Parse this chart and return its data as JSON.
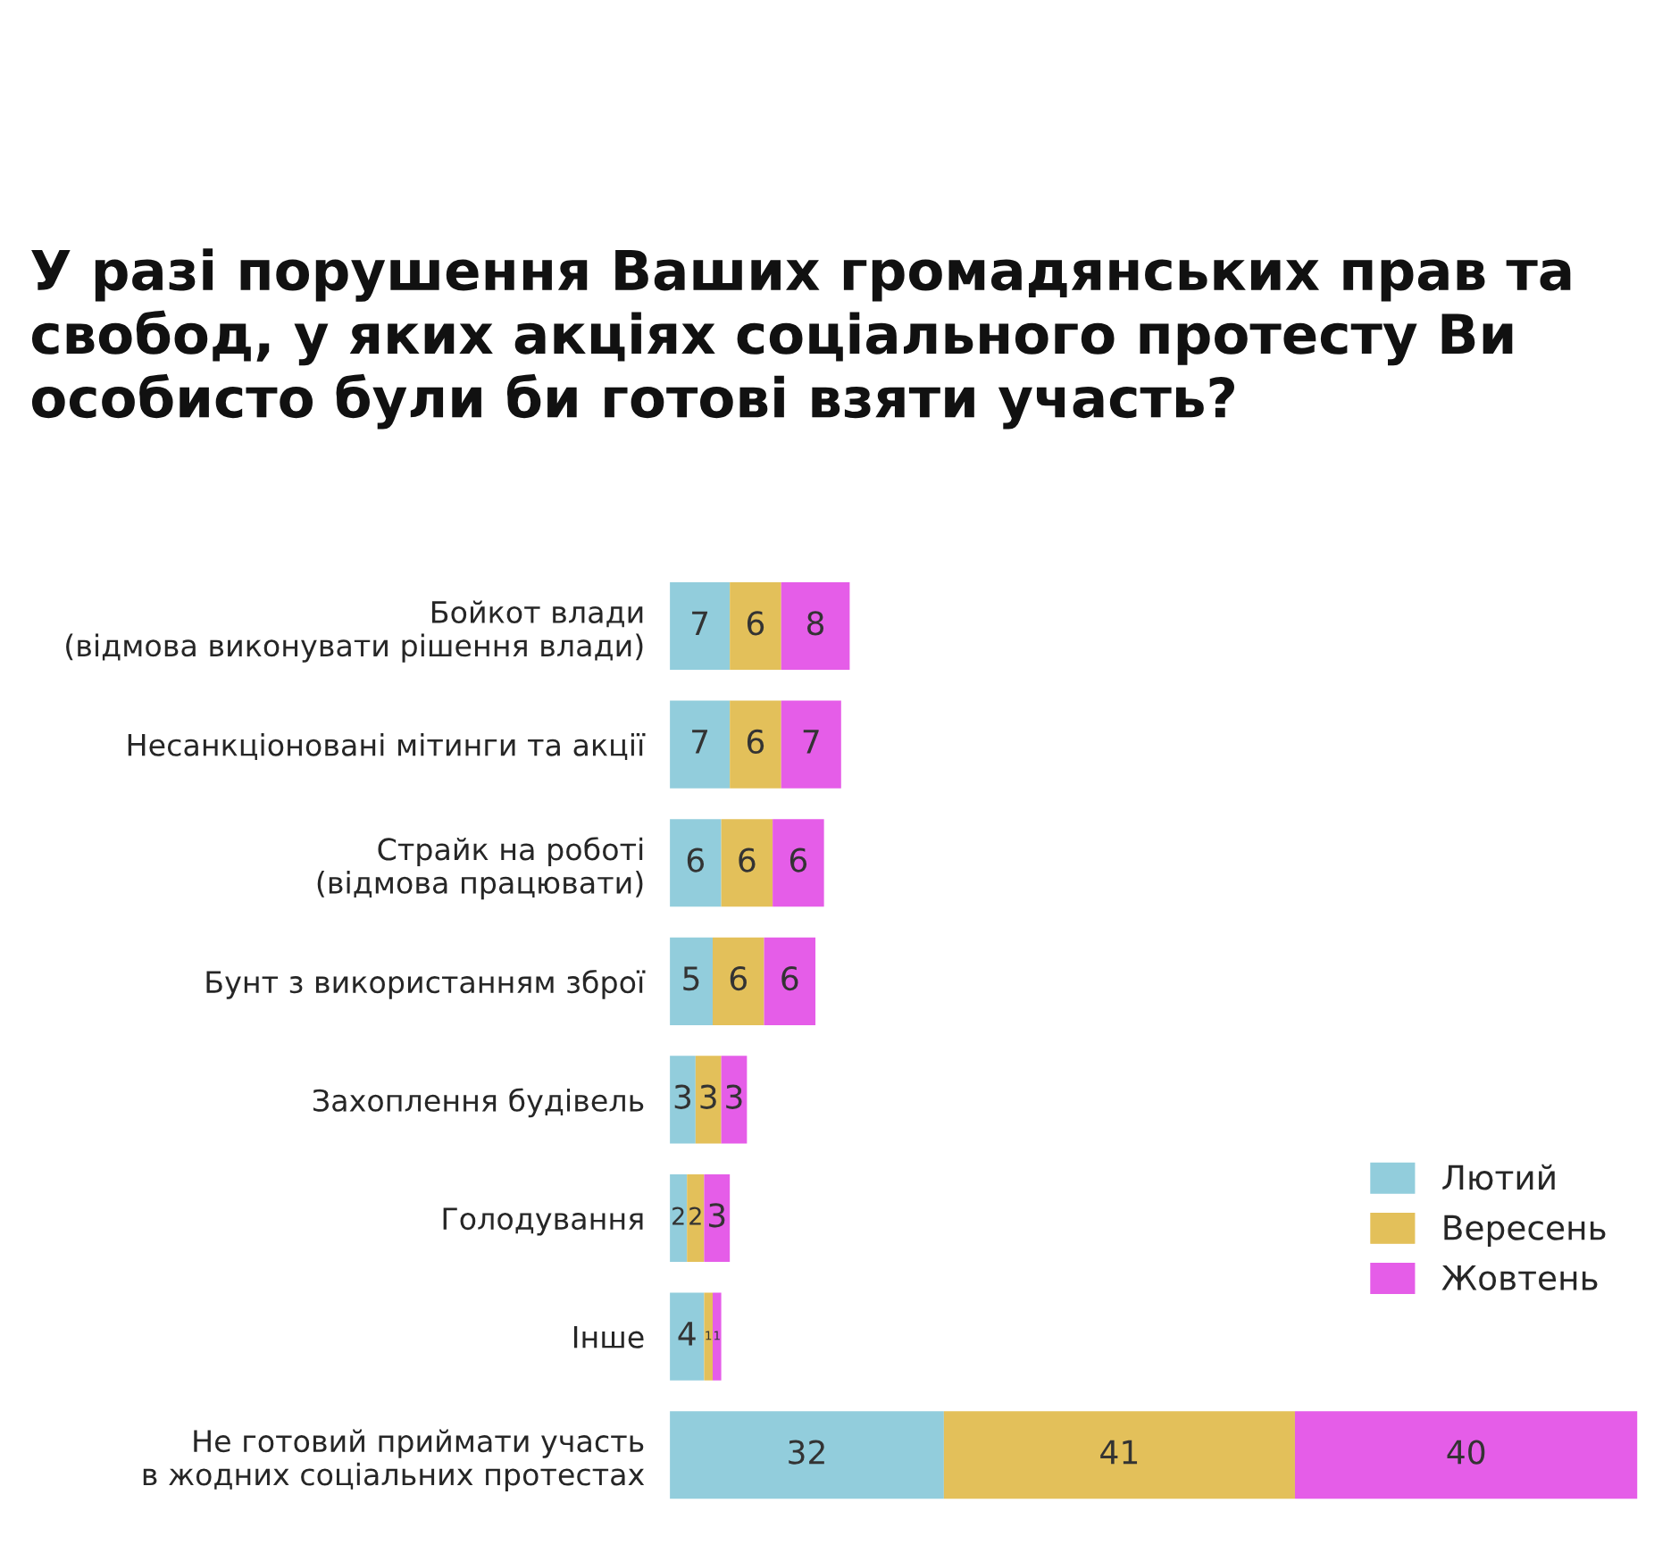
{
  "chart_data": {
    "type": "bar",
    "orientation": "horizontal",
    "stacked": true,
    "data_labels": true,
    "legend": "right",
    "title": "У разі порушення Ваших громадянських прав та свобод, у яких акціях соціального протесту Ви особисто були би готові взяти участь?",
    "categories": [
      "Бойкот влади\n(відмова виконувати рішення влади)",
      "Несанкціоновані мітинги та акції",
      "Страйк на роботі\n(відмова працювати)",
      "Бунт з використанням зброї",
      "Захоплення будівель",
      "Голодування",
      "Інше",
      "Не готовий приймати участь\nв жодних соціальних протестах"
    ],
    "series": [
      {
        "name": "Лютий",
        "color": "#92cddc",
        "values": [
          7,
          7,
          6,
          5,
          3,
          2,
          4,
          32
        ]
      },
      {
        "name": "Вересень",
        "color": "#e3c05a",
        "values": [
          6,
          6,
          6,
          6,
          3,
          2,
          1,
          41
        ]
      },
      {
        "name": "Жовтень",
        "color": "#e55de8",
        "values": [
          8,
          7,
          6,
          6,
          3,
          3,
          1,
          40
        ]
      }
    ]
  }
}
